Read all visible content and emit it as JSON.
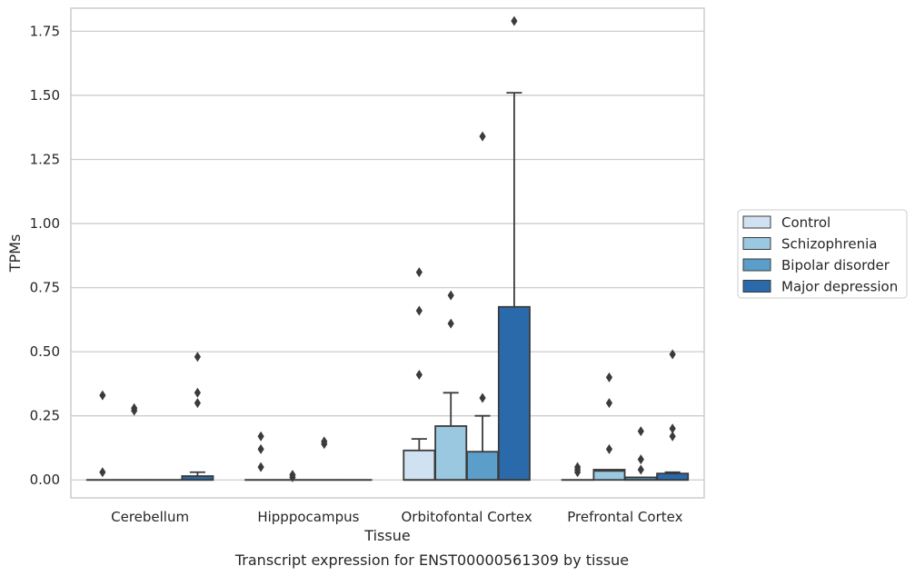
{
  "chart_data": {
    "type": "box",
    "caption": "Transcript expression for ENST00000561309 by tissue",
    "xlabel": "Tissue",
    "ylabel": "TPMs",
    "ylim": [
      -0.07,
      1.84
    ],
    "yticks": [
      0.0,
      0.25,
      0.5,
      0.75,
      1.0,
      1.25,
      1.5,
      1.75
    ],
    "ytick_labels": [
      "0.00",
      "0.25",
      "0.50",
      "0.75",
      "1.00",
      "1.25",
      "1.50",
      "1.75"
    ],
    "grid": "horizontal",
    "legend_position": "right",
    "categories": [
      "Cerebellum",
      "Hipppocampus",
      "Orbitofontal Cortex",
      "Prefrontal Cortex"
    ],
    "series": [
      {
        "name": "Control",
        "color": "#d0e2f2",
        "boxes": [
          {
            "q1": 0,
            "median": 0,
            "q3": 0,
            "whisker_low": 0,
            "whisker_high": 0,
            "outliers": [
              0.03,
              0.33
            ]
          },
          {
            "q1": 0,
            "median": 0,
            "q3": 0,
            "whisker_low": 0,
            "whisker_high": 0,
            "outliers": [
              0.05,
              0.12,
              0.17
            ]
          },
          {
            "q1": 0,
            "median": 0,
            "q3": 0.115,
            "whisker_low": 0,
            "whisker_high": 0.16,
            "outliers": [
              0.41,
              0.66,
              0.81
            ]
          },
          {
            "q1": 0,
            "median": 0,
            "q3": 0,
            "whisker_low": 0,
            "whisker_high": 0,
            "outliers": [
              0.03,
              0.04,
              0.05
            ]
          }
        ]
      },
      {
        "name": "Schizophrenia",
        "color": "#9ac8e0",
        "boxes": [
          {
            "q1": 0,
            "median": 0,
            "q3": 0,
            "whisker_low": 0,
            "whisker_high": 0,
            "outliers": [
              0.27,
              0.28
            ]
          },
          {
            "q1": 0,
            "median": 0,
            "q3": 0,
            "whisker_low": 0,
            "whisker_high": 0,
            "outliers": [
              0.01,
              0.02
            ]
          },
          {
            "q1": 0,
            "median": 0,
            "q3": 0.21,
            "whisker_low": 0,
            "whisker_high": 0.34,
            "outliers": [
              0.61,
              0.72
            ]
          },
          {
            "q1": 0,
            "median": 0.035,
            "q3": 0.04,
            "whisker_low": 0,
            "whisker_high": 0.04,
            "outliers": [
              0.12,
              0.3,
              0.4
            ]
          }
        ]
      },
      {
        "name": "Bipolar disorder",
        "color": "#5a9ec9",
        "boxes": [
          {
            "q1": 0,
            "median": 0,
            "q3": 0,
            "whisker_low": 0,
            "whisker_high": 0,
            "outliers": []
          },
          {
            "q1": 0,
            "median": 0,
            "q3": 0,
            "whisker_low": 0,
            "whisker_high": 0,
            "outliers": [
              0.14,
              0.15
            ]
          },
          {
            "q1": 0,
            "median": 0,
            "q3": 0.11,
            "whisker_low": 0,
            "whisker_high": 0.25,
            "outliers": [
              0.32,
              1.34
            ]
          },
          {
            "q1": 0,
            "median": 0,
            "q3": 0.01,
            "whisker_low": 0,
            "whisker_high": 0.01,
            "outliers": [
              0.04,
              0.08,
              0.19
            ]
          }
        ]
      },
      {
        "name": "Major depression",
        "color": "#2a6aaa",
        "boxes": [
          {
            "q1": 0,
            "median": 0,
            "q3": 0.015,
            "whisker_low": 0,
            "whisker_high": 0.03,
            "outliers": [
              0.3,
              0.34,
              0.48
            ]
          },
          {
            "q1": 0,
            "median": 0,
            "q3": 0,
            "whisker_low": 0,
            "whisker_high": 0,
            "outliers": []
          },
          {
            "q1": 0,
            "median": 0,
            "q3": 0.675,
            "whisker_low": 0,
            "whisker_high": 1.51,
            "outliers": [
              1.79
            ]
          },
          {
            "q1": 0,
            "median": 0,
            "q3": 0.025,
            "whisker_low": 0,
            "whisker_high": 0.03,
            "outliers": [
              0.17,
              0.2,
              0.49
            ]
          }
        ]
      }
    ]
  }
}
